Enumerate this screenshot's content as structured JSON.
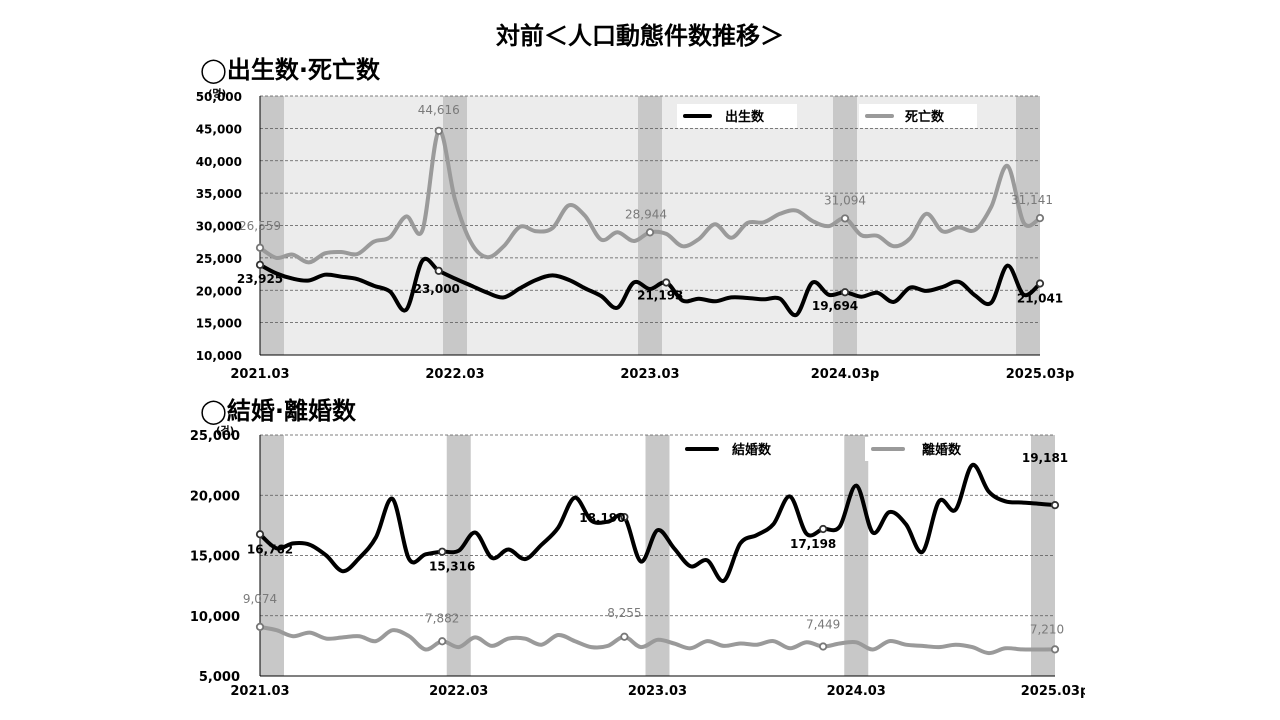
{
  "page": {
    "title": "対前＜人口動態件数推移＞"
  },
  "sections": [
    {
      "title": "◯出生数·死亡数"
    },
    {
      "title": "◯結婚·離婚数"
    }
  ],
  "colors": {
    "primary": "#000000",
    "secondary": "#9a9a9a",
    "band": "#c8c8c8",
    "grid": "#555555"
  },
  "chart_data": [
    {
      "type": "line",
      "unit": "(명)",
      "x_ticks": [
        "2021.03",
        "2022.03",
        "2023.03",
        "2024.03p",
        "2025.03p"
      ],
      "ylim": [
        10000,
        50000
      ],
      "y_ticks": [
        "10,000",
        "15,000",
        "20,000",
        "25,000",
        "30,000",
        "35,000",
        "40,000",
        "45,000",
        "50,000"
      ],
      "legend_position": "top",
      "series": [
        {
          "name": "出生数",
          "values": [
            23925,
            22600,
            21800,
            21500,
            22400,
            22100,
            21700,
            20700,
            19800,
            17000,
            24600,
            23000,
            21800,
            20700,
            19600,
            18900,
            20300,
            21600,
            22300,
            21600,
            20300,
            19100,
            17300,
            21193,
            20200,
            21193,
            18400,
            18700,
            18300,
            18900,
            18800,
            18600,
            18700,
            16200,
            21200,
            19300,
            19694,
            19000,
            19600,
            18200,
            20400,
            19900,
            20500,
            21300,
            19200,
            18100,
            23800,
            19300,
            21041
          ],
          "labels": [
            {
              "index": 0,
              "text": "23,925"
            },
            {
              "index": 11,
              "text": "23,000"
            },
            {
              "index": 25,
              "text": "21,193"
            },
            {
              "index": 36,
              "text": "19,694"
            },
            {
              "index": 48,
              "text": "21,041"
            }
          ]
        },
        {
          "name": "死亡数",
          "values": [
            26559,
            25000,
            25500,
            24300,
            25700,
            25900,
            25600,
            27500,
            28200,
            31400,
            29300,
            44616,
            34000,
            27300,
            25100,
            26800,
            29800,
            29100,
            29600,
            33100,
            31500,
            27800,
            28944,
            27600,
            28944,
            28700,
            26800,
            27900,
            30200,
            28100,
            30400,
            30500,
            31800,
            32300,
            30700,
            29900,
            31094,
            28500,
            28400,
            26800,
            28000,
            31800,
            29100,
            29700,
            29300,
            32900,
            39200,
            30400,
            31141
          ],
          "labels": [
            {
              "index": 0,
              "text": "26,559"
            },
            {
              "index": 11,
              "text": "44,616"
            },
            {
              "index": 24,
              "text": "28,944"
            },
            {
              "index": 36,
              "text": "31,094"
            },
            {
              "index": 48,
              "text": "31,141"
            }
          ]
        }
      ]
    },
    {
      "type": "line",
      "unit": "(건)",
      "x_ticks": [
        "2021.03",
        "2022.03",
        "2023.03",
        "2024.03",
        "2025.03p"
      ],
      "ylim": [
        5000,
        25000
      ],
      "y_ticks": [
        "5,000",
        "10,000",
        "15,000",
        "20,000",
        "25,000"
      ],
      "legend_position": "top",
      "series": [
        {
          "name": "結婚数",
          "values": [
            16762,
            15600,
            16000,
            15900,
            15000,
            13700,
            14800,
            16500,
            19700,
            14700,
            15100,
            15316,
            15400,
            16900,
            14800,
            15500,
            14700,
            15900,
            17300,
            19800,
            17900,
            17800,
            18190,
            14500,
            17100,
            15600,
            14100,
            14600,
            12900,
            16000,
            16700,
            17600,
            19900,
            16800,
            17198,
            17400,
            20800,
            16900,
            18600,
            17600,
            15300,
            19500,
            18800,
            22500,
            20300,
            19500,
            19400,
            19300,
            19181
          ],
          "labels": [
            {
              "index": 0,
              "text": "16,762"
            },
            {
              "index": 11,
              "text": "15,316"
            },
            {
              "index": 22,
              "text": "18,190"
            },
            {
              "index": 34,
              "text": "17,198"
            },
            {
              "index": 48,
              "text": "19,181"
            }
          ]
        },
        {
          "name": "離婚数",
          "values": [
            9074,
            8800,
            8300,
            8600,
            8100,
            8200,
            8300,
            7900,
            8800,
            8300,
            7200,
            7882,
            7400,
            8200,
            7500,
            8100,
            8100,
            7600,
            8400,
            7900,
            7400,
            7500,
            8255,
            7400,
            8000,
            7700,
            7300,
            7900,
            7500,
            7700,
            7600,
            7900,
            7300,
            7800,
            7449,
            7700,
            7800,
            7200,
            7900,
            7600,
            7500,
            7400,
            7600,
            7400,
            6900,
            7300,
            7210,
            7200,
            7210
          ],
          "labels": [
            {
              "index": 0,
              "text": "9,074"
            },
            {
              "index": 11,
              "text": "7,882"
            },
            {
              "index": 22,
              "text": "8,255"
            },
            {
              "index": 34,
              "text": "7,449"
            },
            {
              "index": 48,
              "text": "7,210"
            }
          ]
        }
      ]
    }
  ]
}
